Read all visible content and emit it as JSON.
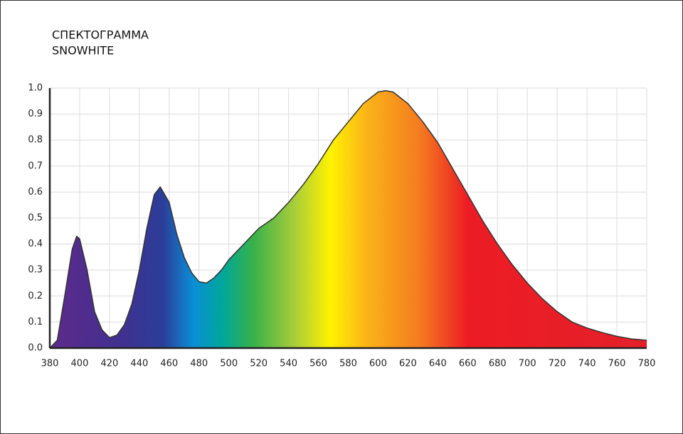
{
  "chart_data": {
    "type": "area",
    "title": "СПЕКТОГРАММА",
    "subtitle": "SNOWHITE",
    "x": [
      380,
      385,
      390,
      395,
      398,
      400,
      405,
      410,
      415,
      420,
      425,
      430,
      435,
      440,
      445,
      450,
      454,
      460,
      465,
      470,
      475,
      480,
      485,
      490,
      495,
      500,
      505,
      510,
      520,
      530,
      540,
      550,
      560,
      570,
      580,
      590,
      600,
      605,
      610,
      620,
      630,
      640,
      650,
      660,
      670,
      680,
      690,
      700,
      710,
      720,
      730,
      740,
      750,
      760,
      770,
      780
    ],
    "values": [
      0,
      0.03,
      0.2,
      0.38,
      0.43,
      0.42,
      0.3,
      0.14,
      0.07,
      0.04,
      0.05,
      0.09,
      0.17,
      0.3,
      0.46,
      0.59,
      0.62,
      0.56,
      0.44,
      0.35,
      0.29,
      0.255,
      0.25,
      0.27,
      0.3,
      0.34,
      0.37,
      0.4,
      0.46,
      0.5,
      0.56,
      0.63,
      0.71,
      0.8,
      0.87,
      0.94,
      0.985,
      0.99,
      0.985,
      0.94,
      0.87,
      0.79,
      0.69,
      0.59,
      0.49,
      0.4,
      0.32,
      0.25,
      0.19,
      0.14,
      0.1,
      0.077,
      0.06,
      0.045,
      0.035,
      0.03
    ],
    "line_color": "#333333",
    "xlim": [
      380,
      780
    ],
    "xticks": [
      380,
      400,
      420,
      440,
      460,
      480,
      500,
      520,
      540,
      560,
      580,
      600,
      620,
      640,
      660,
      680,
      700,
      720,
      740,
      760,
      780
    ],
    "ylim": [
      0,
      1
    ],
    "yticks": [
      {
        "value": 0,
        "label": "0.0"
      },
      0.1,
      0.2,
      0.3,
      0.4,
      0.5,
      0.6,
      0.7,
      0.8,
      0.9,
      {
        "value": 1,
        "label": "1.0"
      }
    ],
    "grid": true
  }
}
